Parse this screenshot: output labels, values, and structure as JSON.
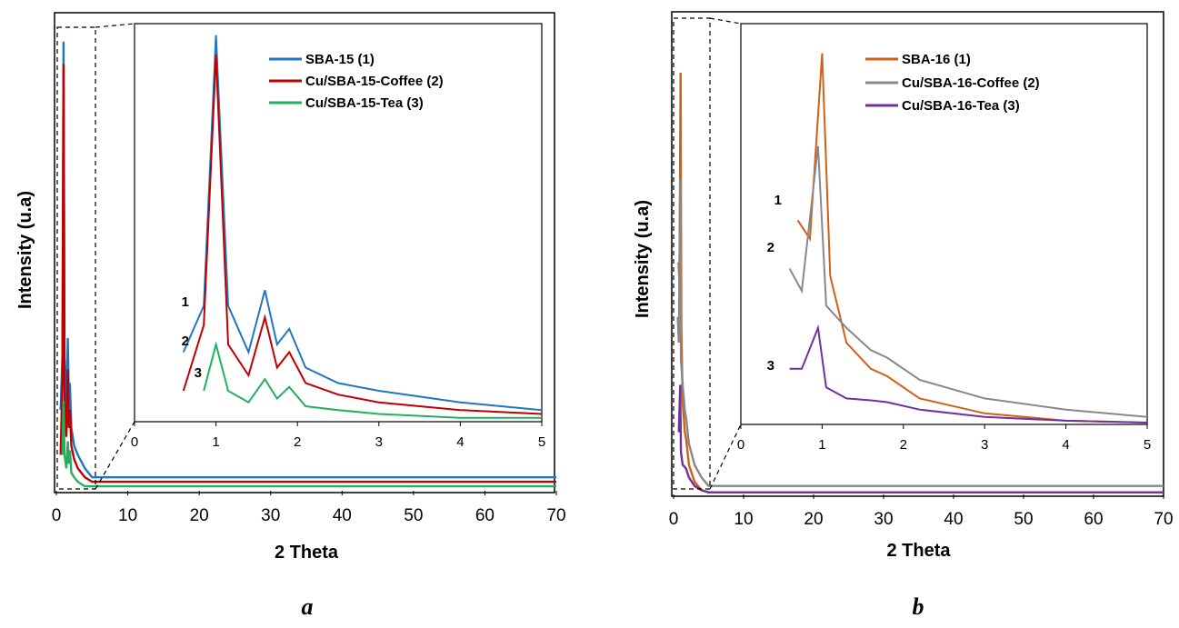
{
  "colors": {
    "SBA-15 (1)": "#1f77c0",
    "Cu/SBA-15-Coffee (2)": "#c00000",
    "Cu/SBA-15-Tea (3)": "#22b060",
    "SBA-16 (1)": "#d06018",
    "Cu/SBA-16-Coffee (2)": "#888888",
    "Cu/SBA-16-Tea (3)": "#7030a0"
  },
  "chart_data": [
    {
      "type": "line",
      "panel_label": "a",
      "xlabel": "2 Theta",
      "ylabel": "Intensity (u.a)",
      "xlim": [
        0,
        70
      ],
      "xticks": [
        "0",
        "10",
        "20",
        "30",
        "40",
        "50",
        "60",
        "70"
      ],
      "yticks_shown": false,
      "series": [
        {
          "name": "SBA-15 (1)",
          "x": [
            0.6,
            0.85,
            1.0,
            1.15,
            1.4,
            1.6,
            1.75,
            1.9,
            2.1,
            2.5,
            3,
            4,
            5,
            10,
            30,
            70
          ],
          "y": [
            0.18,
            0.3,
            1.0,
            0.3,
            0.18,
            0.34,
            0.2,
            0.24,
            0.14,
            0.1,
            0.08,
            0.05,
            0.03,
            0.03,
            0.03,
            0.03
          ]
        },
        {
          "name": "Cu/SBA-15-Coffee (2)",
          "x": [
            0.6,
            0.85,
            1.0,
            1.15,
            1.4,
            1.6,
            1.75,
            1.9,
            2.1,
            2.5,
            3,
            4,
            5,
            10,
            30,
            70
          ],
          "y": [
            0.08,
            0.25,
            0.95,
            0.2,
            0.12,
            0.27,
            0.14,
            0.18,
            0.1,
            0.07,
            0.05,
            0.03,
            0.02,
            0.02,
            0.02,
            0.02
          ]
        },
        {
          "name": "Cu/SBA-15-Tea (3)",
          "x": [
            0.85,
            1.0,
            1.15,
            1.4,
            1.6,
            1.75,
            1.9,
            2.1,
            2.5,
            3,
            4,
            5,
            10,
            30,
            70
          ],
          "y": [
            0.08,
            0.2,
            0.08,
            0.05,
            0.11,
            0.06,
            0.09,
            0.04,
            0.03,
            0.02,
            0.01,
            0.01,
            0.01,
            0.01,
            0.01
          ]
        }
      ],
      "inset": {
        "xlim": [
          0,
          5
        ],
        "xticks": [
          "0",
          "1",
          "2",
          "3",
          "4",
          "5"
        ],
        "curve_labels": [
          "1",
          "2",
          "3"
        ]
      }
    },
    {
      "type": "line",
      "panel_label": "b",
      "xlabel": "2 Theta",
      "ylabel": "Intensity (u.a)",
      "xlim": [
        0,
        70
      ],
      "xticks": [
        "0",
        "10",
        "20",
        "30",
        "40",
        "50",
        "60",
        "70"
      ],
      "yticks_shown": false,
      "series": [
        {
          "name": "SBA-16 (1)",
          "x": [
            0.7,
            0.85,
            1.0,
            1.1,
            1.3,
            1.6,
            1.8,
            2.2,
            3,
            4,
            5,
            10,
            30,
            70
          ],
          "y": [
            0.55,
            0.5,
            1.0,
            0.4,
            0.22,
            0.15,
            0.13,
            0.07,
            0.03,
            0.01,
            0.005,
            0.005,
            0.005,
            0.005
          ]
        },
        {
          "name": "Cu/SBA-16-Coffee (2)",
          "x": [
            0.6,
            0.75,
            0.95,
            1.05,
            1.3,
            1.6,
            1.8,
            2.2,
            3,
            4,
            5,
            10,
            30,
            70
          ],
          "y": [
            0.42,
            0.36,
            0.75,
            0.32,
            0.26,
            0.2,
            0.18,
            0.12,
            0.07,
            0.04,
            0.02,
            0.02,
            0.02,
            0.02
          ]
        },
        {
          "name": "Cu/SBA-16-Tea (3)",
          "x": [
            0.6,
            0.75,
            0.95,
            1.05,
            1.3,
            1.6,
            1.8,
            2.2,
            3,
            4,
            5,
            10,
            30,
            70
          ],
          "y": [
            0.15,
            0.15,
            0.26,
            0.1,
            0.07,
            0.065,
            0.06,
            0.04,
            0.02,
            0.01,
            0.005,
            0.005,
            0.005,
            0.005
          ]
        }
      ],
      "inset": {
        "xlim": [
          0,
          5
        ],
        "xticks": [
          "0",
          "1",
          "2",
          "3",
          "4",
          "5"
        ],
        "curve_labels": [
          "1",
          "2",
          "3"
        ]
      }
    }
  ]
}
